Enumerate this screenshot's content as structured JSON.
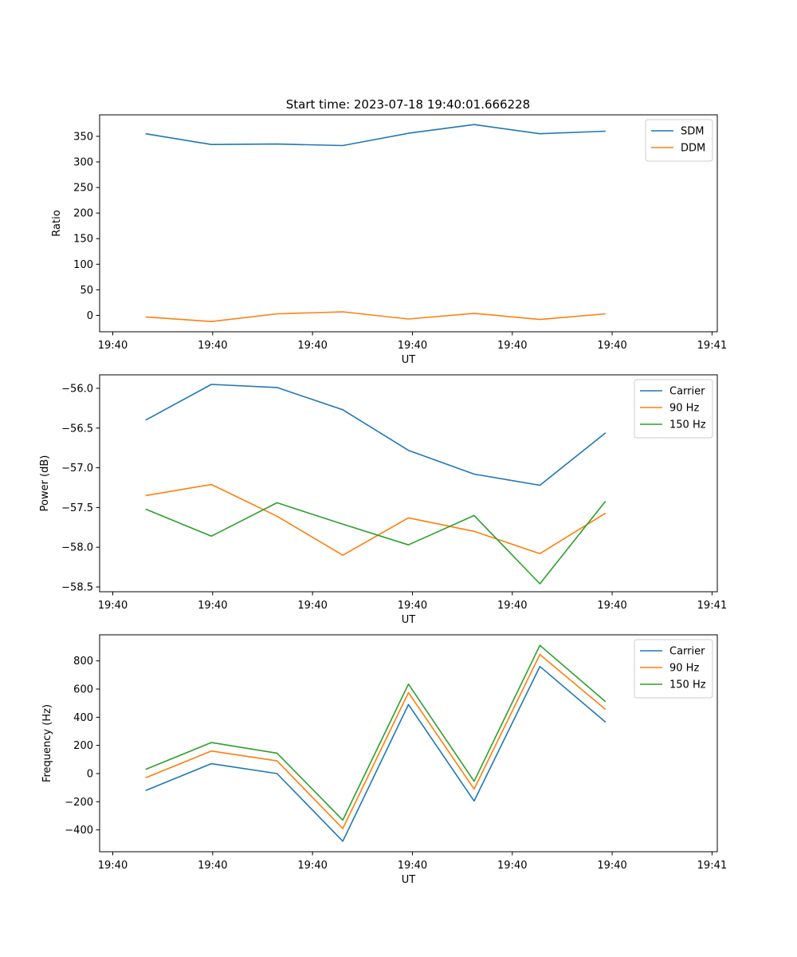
{
  "figure": {
    "title": "Start time: 2023-07-18 19:40:01.666228"
  },
  "chart_data": [
    {
      "type": "line",
      "title": "Start time: 2023-07-18 19:40:01.666228",
      "xlabel": "UT",
      "ylabel": "Ratio",
      "x": [
        0.5,
        1.5,
        2.5,
        3.5,
        4.5,
        5.5,
        6.5,
        7.5
      ],
      "xlim": [
        -0.2,
        9.2
      ],
      "xticks": [
        0,
        1.52,
        3.04,
        4.56,
        6.08,
        7.6,
        9.12
      ],
      "xtick_labels": [
        "19:40",
        "19:40",
        "19:40",
        "19:40",
        "19:40",
        "19:40",
        "19:41"
      ],
      "ylim": [
        -32,
        392
      ],
      "yticks": [
        0,
        50,
        100,
        150,
        200,
        250,
        300,
        350
      ],
      "ytick_labels": [
        "0",
        "50",
        "100",
        "150",
        "200",
        "250",
        "300",
        "350"
      ],
      "legend": "top-right",
      "series": [
        {
          "name": "SDM",
          "color": "#1f77b4",
          "values": [
            355,
            334,
            335,
            332,
            356,
            373,
            355,
            360
          ]
        },
        {
          "name": "DDM",
          "color": "#ff7f0e",
          "values": [
            -3,
            -12,
            3,
            7,
            -7,
            4,
            -8,
            3
          ]
        }
      ]
    },
    {
      "type": "line",
      "xlabel": "UT",
      "ylabel": "Power (dB)",
      "x": [
        0.5,
        1.5,
        2.5,
        3.5,
        4.5,
        5.5,
        6.5,
        7.5
      ],
      "xlim": [
        -0.2,
        9.2
      ],
      "xticks": [
        0,
        1.52,
        3.04,
        4.56,
        6.08,
        7.6,
        9.12
      ],
      "xtick_labels": [
        "19:40",
        "19:40",
        "19:40",
        "19:40",
        "19:40",
        "19:40",
        "19:41"
      ],
      "ylim": [
        -58.56,
        -55.83
      ],
      "yticks": [
        -58.5,
        -58.0,
        -57.5,
        -57.0,
        -56.5,
        -56.0
      ],
      "ytick_labels": [
        "−58.5",
        "−58.0",
        "−57.5",
        "−57.0",
        "−56.5",
        "−56.0"
      ],
      "legend": "top-right",
      "series": [
        {
          "name": "Carrier",
          "color": "#1f77b4",
          "values": [
            -56.4,
            -55.95,
            -55.99,
            -56.27,
            -56.78,
            -57.08,
            -57.22,
            -56.56
          ]
        },
        {
          "name": "90 Hz",
          "color": "#ff7f0e",
          "values": [
            -57.35,
            -57.21,
            -57.61,
            -58.1,
            -57.63,
            -57.8,
            -58.08,
            -57.57
          ]
        },
        {
          "name": "150 Hz",
          "color": "#2ca02c",
          "values": [
            -57.52,
            -57.86,
            -57.44,
            -57.71,
            -57.97,
            -57.6,
            -58.46,
            -57.42
          ]
        }
      ]
    },
    {
      "type": "line",
      "xlabel": "UT",
      "ylabel": "Frequency (Hz)",
      "x": [
        0.5,
        1.5,
        2.5,
        3.5,
        4.5,
        5.5,
        6.5,
        7.5
      ],
      "xlim": [
        -0.2,
        9.2
      ],
      "xticks": [
        0,
        1.52,
        3.04,
        4.56,
        6.08,
        7.6,
        9.12
      ],
      "xtick_labels": [
        "19:40",
        "19:40",
        "19:40",
        "19:40",
        "19:40",
        "19:40",
        "19:41"
      ],
      "ylim": [
        -555,
        985
      ],
      "yticks": [
        -400,
        -200,
        0,
        200,
        400,
        600,
        800
      ],
      "ytick_labels": [
        "−400",
        "−200",
        "0",
        "200",
        "400",
        "600",
        "800"
      ],
      "legend": "top-right",
      "series": [
        {
          "name": "Carrier",
          "color": "#1f77b4",
          "values": [
            -120,
            70,
            0,
            -480,
            490,
            -195,
            760,
            365
          ]
        },
        {
          "name": "90 Hz",
          "color": "#ff7f0e",
          "values": [
            -30,
            160,
            90,
            -390,
            575,
            -110,
            845,
            455
          ]
        },
        {
          "name": "150 Hz",
          "color": "#2ca02c",
          "values": [
            30,
            220,
            145,
            -330,
            635,
            -55,
            910,
            510
          ]
        }
      ]
    }
  ]
}
